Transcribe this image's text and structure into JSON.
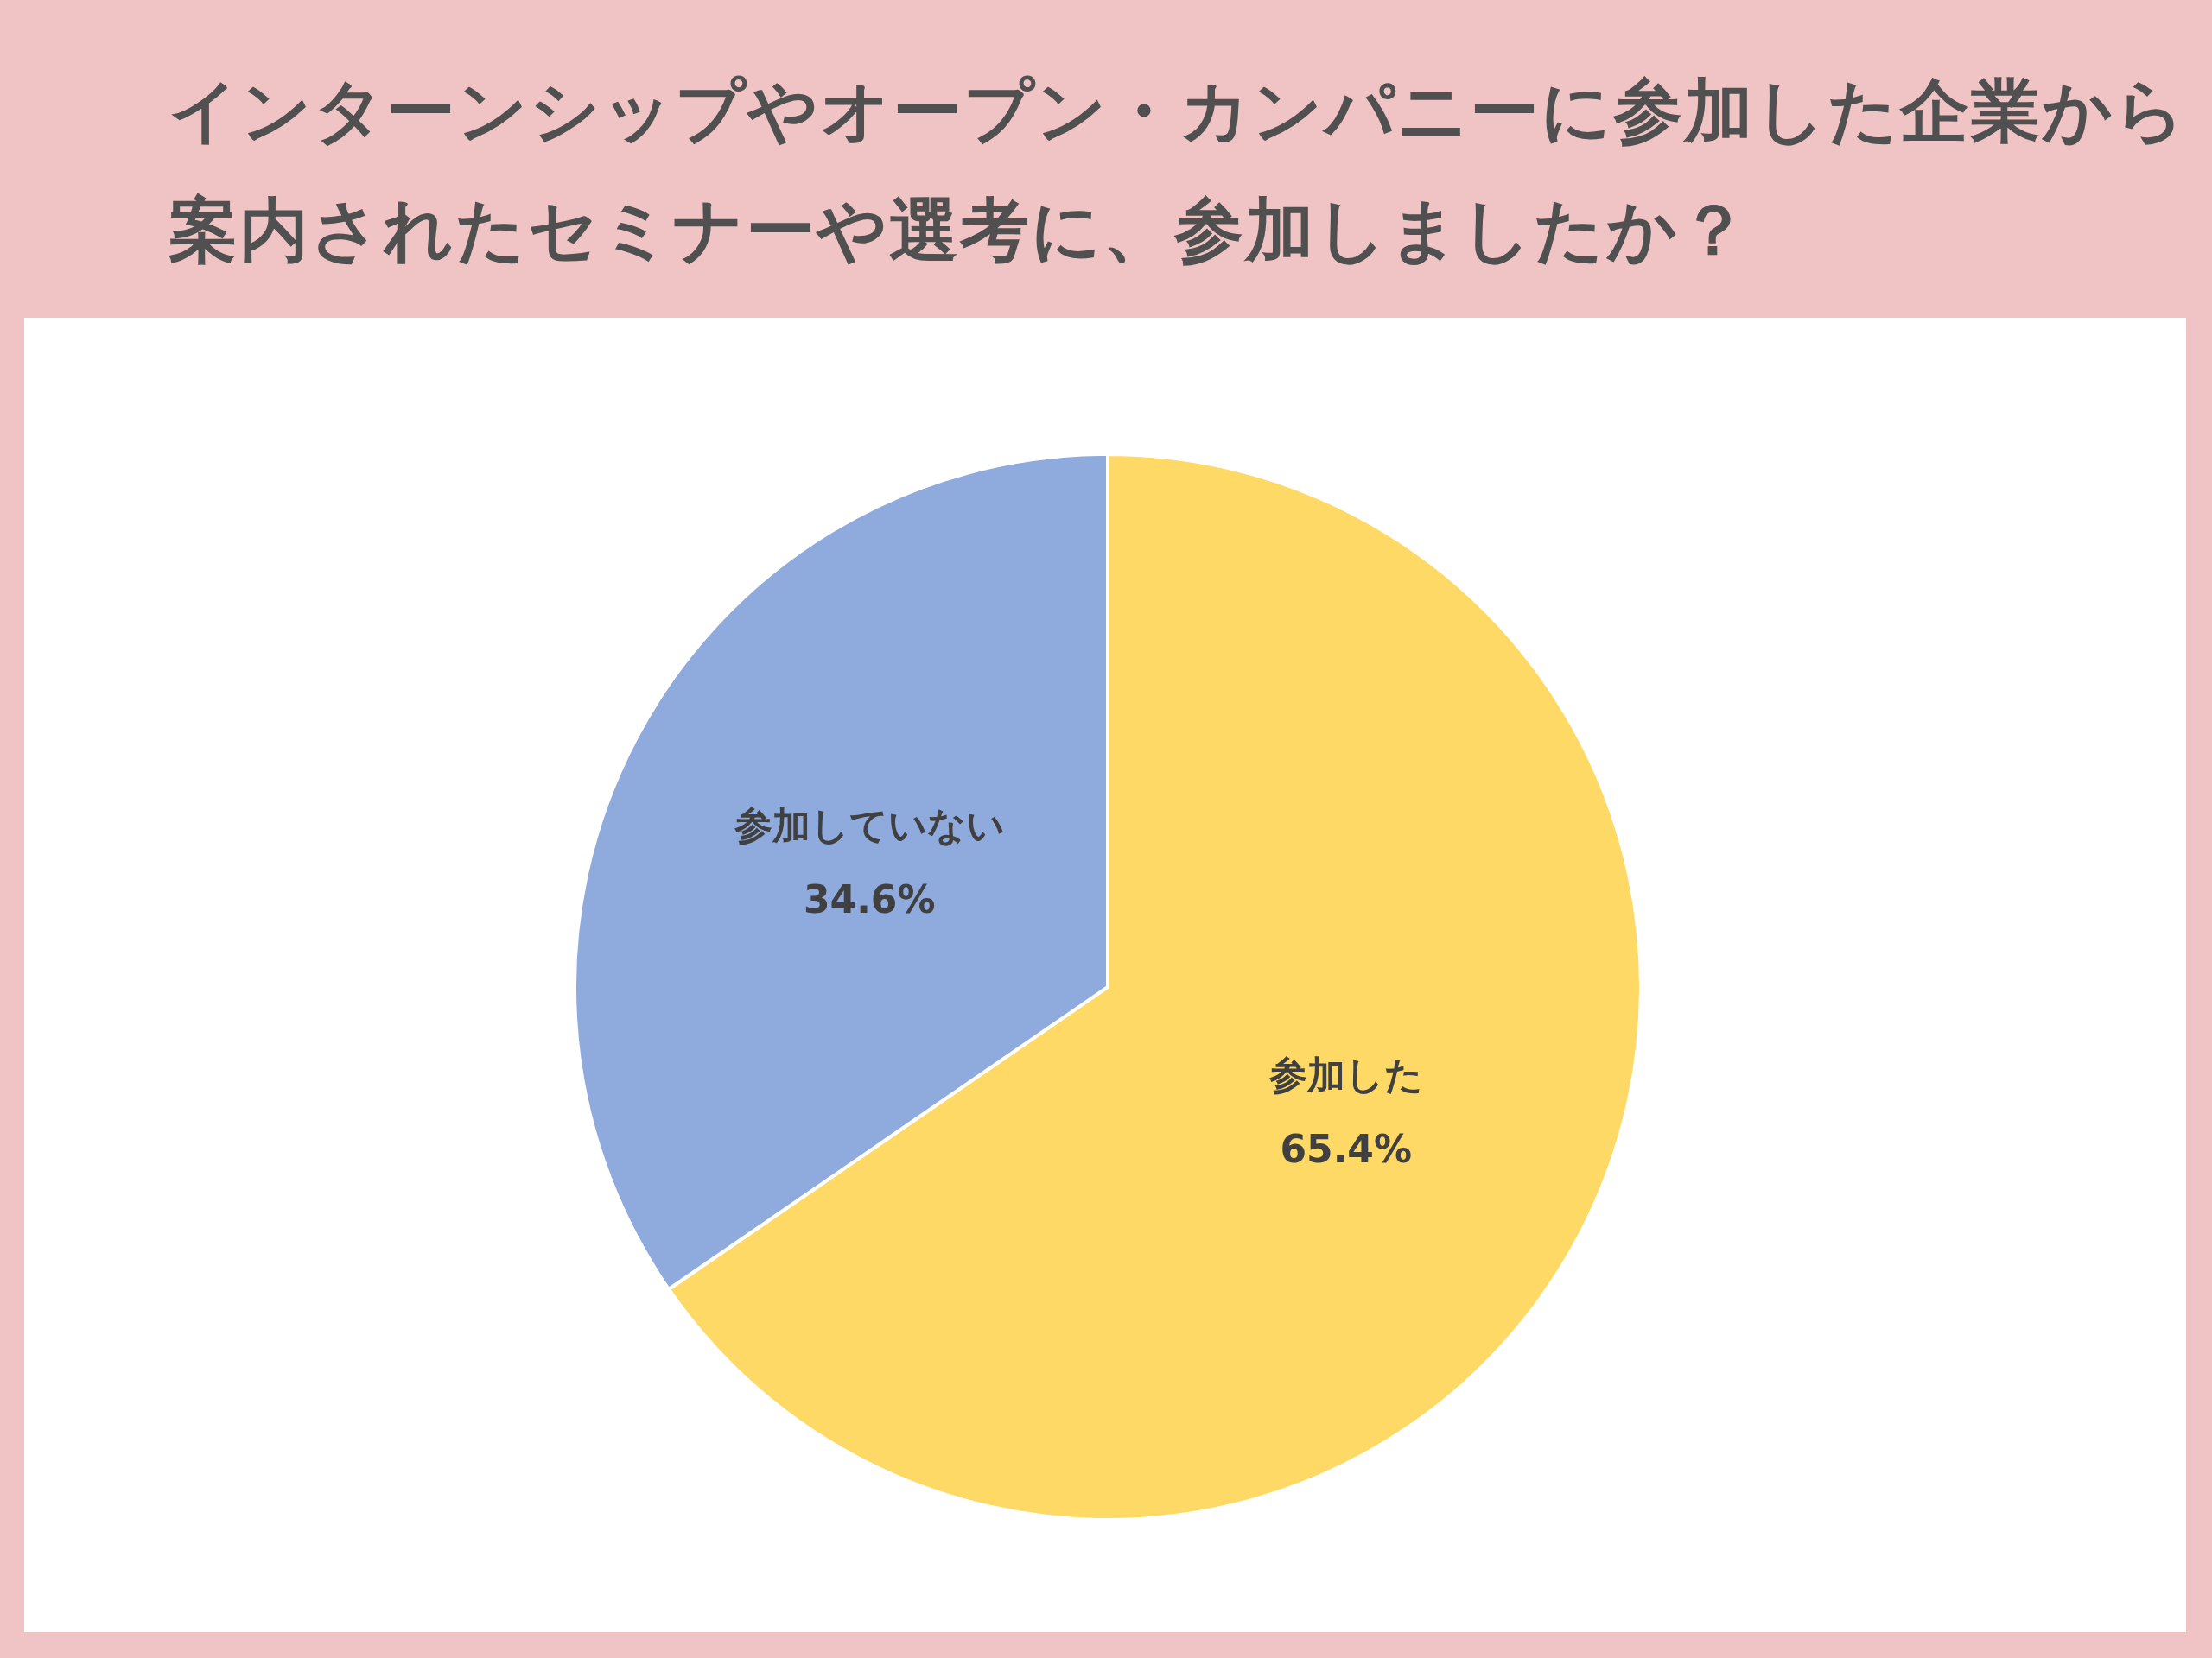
{
  "chart_data": {
    "type": "pie",
    "title": "インターンシップやオープン・カンパニーに参加した企業から案内されたセミナーや選考に、参加しましたか？",
    "categories": [
      "参加した",
      "参加していない"
    ],
    "values": [
      65.4,
      34.6
    ],
    "colors": [
      "#fed966",
      "#8faadc"
    ],
    "value_labels": [
      "65.4%",
      "34.6%"
    ],
    "legend": false
  }
}
